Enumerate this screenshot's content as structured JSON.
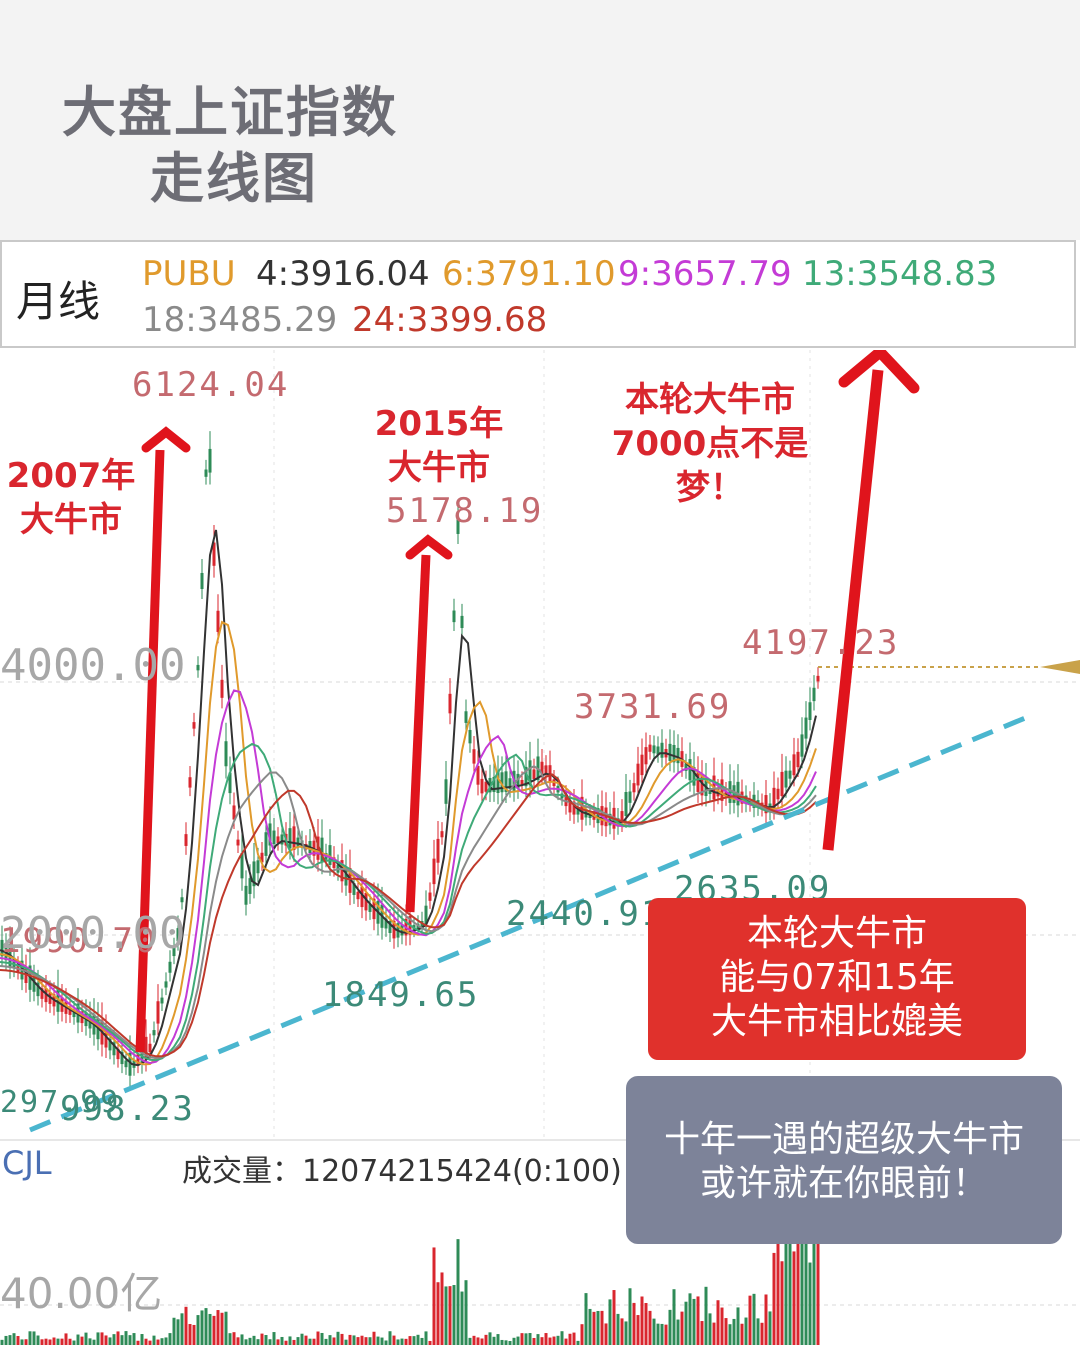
{
  "header": {
    "title_line1": "大盘上证指数",
    "title_line2": "走线图"
  },
  "legend": {
    "period": "月线",
    "items": [
      {
        "label": "PUBU",
        "color": "#e09a2c"
      },
      {
        "label": "4:3916.04",
        "color": "#333333"
      },
      {
        "label": "6:3791.10",
        "color": "#e09a2c"
      },
      {
        "label": "9:3657.79",
        "color": "#c43bd6"
      },
      {
        "label": "13:3548.83",
        "color": "#3faa78"
      },
      {
        "label": "18:3485.29",
        "color": "#8a8a8a"
      },
      {
        "label": "24:3399.68",
        "color": "#c0392b"
      }
    ]
  },
  "chart_data": {
    "type": "line",
    "title": "大盘上证指数 走线图",
    "price_axis_ticks": [
      "4000.00",
      "2000.00"
    ],
    "price_labels": [
      "6124.04",
      "5178.19",
      "4197.23",
      "3731.69",
      "2440.91",
      "2635.09",
      "1849.65",
      "1990.70",
      "998.23",
      "297.99"
    ],
    "series": [
      {
        "name": "4",
        "value": 3916.04,
        "color": "#333333"
      },
      {
        "name": "6",
        "value": 3791.1,
        "color": "#e09a2c"
      },
      {
        "name": "9",
        "value": 3657.79,
        "color": "#c43bd6"
      },
      {
        "name": "13",
        "value": 3548.83,
        "color": "#3faa78"
      },
      {
        "name": "18",
        "value": 3485.29,
        "color": "#8a8a8a"
      },
      {
        "name": "24",
        "value": 3399.68,
        "color": "#c0392b"
      }
    ],
    "volume": {
      "label": "CJL",
      "value_text": "成交量：12074215424(0:100)",
      "axis_tick": "40.00亿"
    }
  },
  "annotations": {
    "bull_2007": [
      "2007年",
      "大牛市"
    ],
    "bull_2015": [
      "2015年",
      "大牛市"
    ],
    "current": [
      "本轮大牛市",
      "7000点不是",
      "梦！"
    ],
    "red_box": [
      "本轮大牛市",
      "能与07和15年",
      "大牛市相比媲美"
    ],
    "gray_box": [
      "十年一遇的超级大牛市",
      "或许就在你眼前！"
    ]
  },
  "colors": {
    "up": "#d9262e",
    "down": "#2e8b57",
    "trendline": "#4bb6cf"
  }
}
